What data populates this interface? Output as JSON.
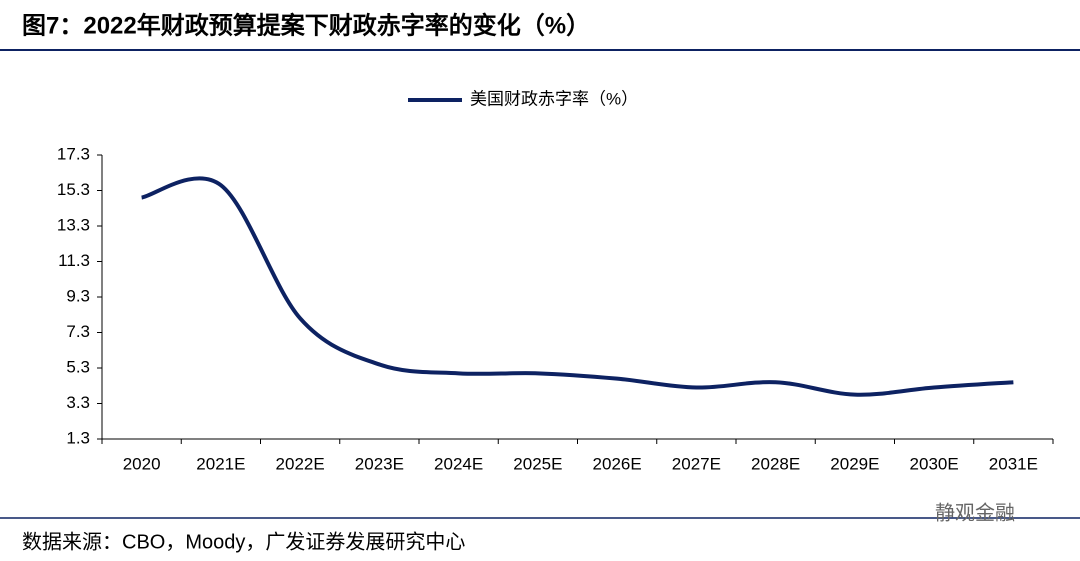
{
  "chart_data": {
    "type": "line",
    "title": "图7：2022年财政预算提案下财政赤字率的变化（%）",
    "source": "数据来源：CBO，Moody，广发证券发展研究中心",
    "watermark": "静观金融",
    "categories": [
      "2020",
      "2021E",
      "2022E",
      "2023E",
      "2024E",
      "2025E",
      "2026E",
      "2027E",
      "2028E",
      "2029E",
      "2030E",
      "2031E"
    ],
    "series": [
      {
        "name": "美国财政赤字率（%）",
        "color": "#0d2262",
        "values": [
          14.9,
          15.6,
          8.1,
          5.5,
          5.0,
          5.0,
          4.7,
          4.2,
          4.5,
          3.8,
          4.2,
          4.5
        ]
      }
    ],
    "ylim": [
      1.3,
      17.3
    ],
    "yticks": [
      1.3,
      3.3,
      5.3,
      7.3,
      9.3,
      11.3,
      13.3,
      15.3,
      17.3
    ],
    "grid": false
  }
}
